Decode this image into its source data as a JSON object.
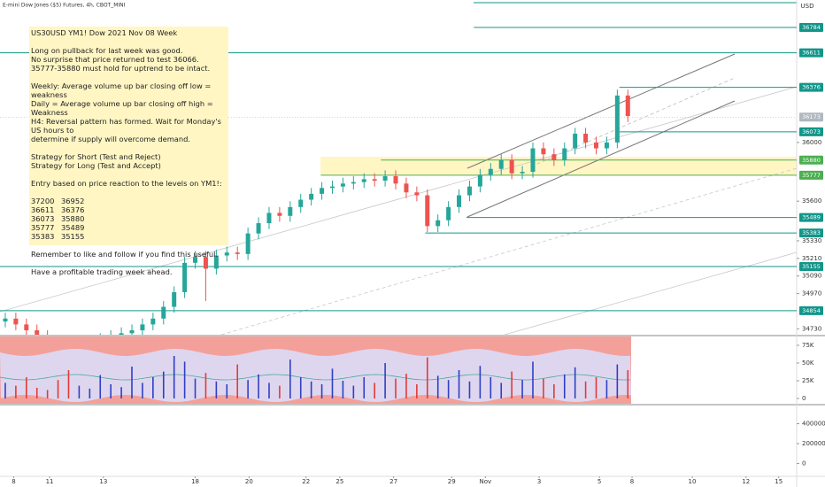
{
  "chart_data": {
    "type": "candlestick",
    "title": "E-mini Dow Jones ($5) Futures, 4h, CBOT_MINI",
    "currency": "USD",
    "xlim": [
      -0.5,
      75
    ],
    "xticks": [
      {
        "value": 0.8,
        "label": "8"
      },
      {
        "value": 4.2,
        "label": "11"
      },
      {
        "value": 9.3,
        "label": "13"
      },
      {
        "value": 18,
        "label": "18"
      },
      {
        "value": 23.1,
        "label": "20"
      },
      {
        "value": 28.5,
        "label": "22"
      },
      {
        "value": 31.7,
        "label": "25"
      },
      {
        "value": 36.8,
        "label": "27"
      },
      {
        "value": 42.3,
        "label": "29"
      },
      {
        "value": 45.5,
        "label": "Nov"
      },
      {
        "value": 50.6,
        "label": "3"
      },
      {
        "value": 56.3,
        "label": "5"
      },
      {
        "value": 59.4,
        "label": "8"
      },
      {
        "value": 65.1,
        "label": "10"
      },
      {
        "value": 70.2,
        "label": "12"
      },
      {
        "value": 73.3,
        "label": "15"
      }
    ],
    "ylim": [
      34690,
      36971
    ],
    "yticks": [
      36000,
      35600,
      35330,
      35210,
      35090,
      34970,
      34730
    ],
    "up_color": "#26a69a",
    "down_color": "#ef5350",
    "open": [
      34780,
      34800,
      34760,
      34720,
      34680,
      34650,
      34620,
      34600,
      34620,
      34640,
      34660,
      34680,
      34700,
      34720,
      34760,
      34800,
      34880,
      34980,
      35180,
      35220,
      35140,
      35230,
      35250,
      35240,
      35380,
      35450,
      35520,
      35500,
      35560,
      35610,
      35650,
      35690,
      35700,
      35720,
      35730,
      35750,
      35740,
      35770,
      35720,
      35660,
      35640,
      35430,
      35470,
      35560,
      35640,
      35700,
      35780,
      35820,
      35880,
      35790,
      35800,
      35960,
      35920,
      35880,
      35960,
      36060,
      36000,
      35960,
      36000,
      36320
    ],
    "high": [
      34840,
      34840,
      34800,
      34760,
      34720,
      34690,
      34660,
      34660,
      34680,
      34700,
      34720,
      34740,
      34760,
      34800,
      34840,
      34920,
      35020,
      35220,
      35260,
      35260,
      35270,
      35290,
      35290,
      35420,
      35490,
      35560,
      35560,
      35600,
      35650,
      35690,
      35730,
      35740,
      35760,
      35770,
      35790,
      35790,
      35810,
      35810,
      35760,
      35700,
      35680,
      35510,
      35600,
      35680,
      35740,
      35820,
      35860,
      35920,
      35920,
      35840,
      36000,
      36000,
      35960,
      36000,
      36100,
      36100,
      36040,
      36040,
      36360,
      36360
    ],
    "low": [
      34740,
      34720,
      34680,
      34640,
      34610,
      34580,
      34560,
      34560,
      34580,
      34600,
      34620,
      34640,
      34660,
      34680,
      34720,
      34760,
      34840,
      34940,
      35140,
      34920,
      35100,
      35190,
      35200,
      35200,
      35340,
      35410,
      35460,
      35460,
      35520,
      35570,
      35610,
      35650,
      35660,
      35680,
      35690,
      35700,
      35700,
      35680,
      35620,
      35600,
      35390,
      35390,
      35430,
      35520,
      35600,
      35660,
      35740,
      35780,
      35750,
      35750,
      35760,
      35880,
      35840,
      35840,
      35920,
      35960,
      35920,
      35920,
      35960,
      36140
    ],
    "close": [
      34800,
      34760,
      34720,
      34680,
      34650,
      34620,
      34600,
      34620,
      34640,
      34660,
      34680,
      34700,
      34720,
      34760,
      34800,
      34880,
      34980,
      35180,
      35220,
      35140,
      35230,
      35250,
      35240,
      35380,
      35450,
      35520,
      35500,
      35560,
      35610,
      35650,
      35690,
      35700,
      35720,
      35730,
      35750,
      35740,
      35770,
      35720,
      35660,
      35640,
      35430,
      35470,
      35560,
      35640,
      35700,
      35780,
      35820,
      35880,
      35790,
      35800,
      35960,
      35920,
      35880,
      35960,
      36060,
      36000,
      35960,
      36000,
      36320,
      36180
    ],
    "last_price": 36173,
    "levels": [
      {
        "value": 36784,
        "from": 44.4,
        "color": "#12968a"
      },
      {
        "value": 36611,
        "from": -0.5,
        "color": "#12968a"
      },
      {
        "value": 36376,
        "from": 58.2,
        "color": "#12968a"
      },
      {
        "value": 36073,
        "from": 58.2,
        "color": "#12968a"
      },
      {
        "value": 35880,
        "from": 35.6,
        "color": "#4caf50"
      },
      {
        "value": 35777,
        "from": 29.9,
        "color": "#4caf50"
      },
      {
        "value": 35489,
        "from": 43.7,
        "color": "#12968a"
      },
      {
        "value": 35383,
        "from": 39.8,
        "color": "#12968a"
      },
      {
        "value": 35155,
        "from": -0.5,
        "color": "#12968a"
      },
      {
        "value": 34854,
        "from": -0.5,
        "color": "#12968a"
      }
    ],
    "volume": {
      "values": [
        22000,
        18000,
        30000,
        15000,
        12000,
        26000,
        40000,
        18000,
        14000,
        33000,
        20000,
        16000,
        45000,
        22000,
        30000,
        38000,
        60000,
        52000,
        28000,
        36000,
        24000,
        20000,
        48000,
        26000,
        34000,
        22000,
        18000,
        55000,
        30000,
        24000,
        20000,
        42000,
        25000,
        18000,
        30000,
        22000,
        50000,
        28000,
        35000,
        20000,
        58000,
        32000,
        26000,
        40000,
        24000,
        46000,
        30000,
        22000,
        38000,
        26000,
        52000,
        28000,
        20000,
        34000,
        44000,
        24000,
        30000,
        26000,
        48000,
        40000
      ],
      "ylim": [
        -7500,
        87500
      ],
      "yticks": [
        {
          "value": 75000,
          "label": "75K"
        },
        {
          "value": 50000,
          "label": "50K"
        },
        {
          "value": 25000,
          "label": "25K"
        },
        0
      ],
      "up_color": "#2f3fc4",
      "down_color": "#e53935"
    },
    "lower_pane": {
      "ylim": [
        -130000,
        583000
      ],
      "yticks": [
        400000,
        200000,
        0
      ]
    }
  },
  "note": {
    "heading": "US30USD YM1! Dow 2021 Nov 08 Week",
    "paragraphs": [
      [
        "Long on pullback for last week was good.",
        "No surprise that price returned to test 36066.",
        "35777-35880 must hold for uptrend to be intact."
      ],
      [
        "Weekly: Average volume up bar closing off low = weakness",
        "Daily = Average volume up bar closing off high = Weakness",
        "H4: Reversal pattern has formed. Wait for Monday's US hours to",
        "determine if supply will overcome demand."
      ],
      [
        "Strategy for Short (Test and Reject)",
        "Strategy for Long (Test and Accept)"
      ],
      [
        "Entry based on price reaction to the levels on YM1!:"
      ]
    ],
    "table": [
      [
        "37200",
        "36952"
      ],
      [
        "36611",
        "36376"
      ],
      [
        "36073",
        "35880"
      ],
      [
        "35777",
        "35489"
      ],
      [
        "35383",
        "35155"
      ]
    ],
    "closing": [
      "Remember to like and follow if you find this useful.",
      "Have a profitable trading week ahead."
    ]
  }
}
